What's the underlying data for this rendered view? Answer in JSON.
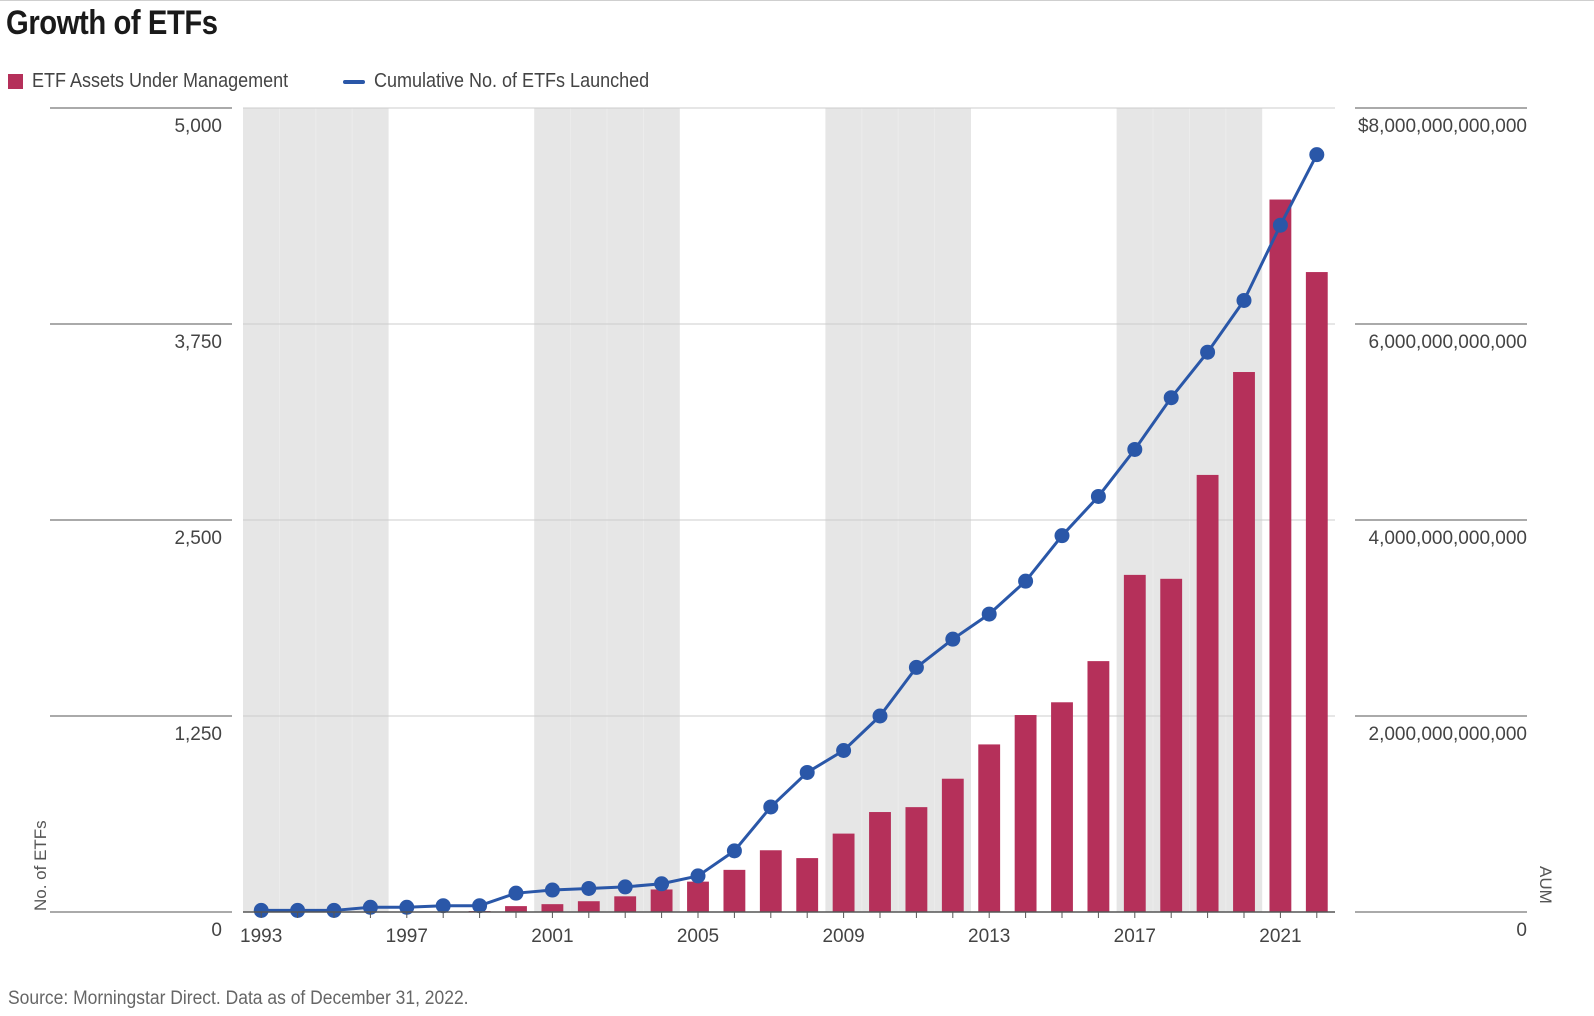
{
  "title": "Growth of ETFs",
  "source": "Source: Morningstar Direct. Data as of December 31, 2022.",
  "legend": {
    "bars": "ETF Assets Under Management",
    "line": "Cumulative No. of ETFs Launched"
  },
  "colors": {
    "bar": "#b5305a",
    "line": "#2a57a8",
    "shade": "#e6e6e6",
    "grid": "#cccccc",
    "axis": "#555555"
  },
  "chart_data": {
    "type": "bar",
    "title": "Growth of ETFs",
    "x": [
      1993,
      1994,
      1995,
      1996,
      1997,
      1998,
      1999,
      2000,
      2001,
      2002,
      2003,
      2004,
      2005,
      2006,
      2007,
      2008,
      2009,
      2010,
      2011,
      2012,
      2013,
      2014,
      2015,
      2016,
      2017,
      2018,
      2019,
      2020,
      2021,
      2022
    ],
    "x_tick_labels": [
      "1993",
      "1997",
      "2001",
      "2005",
      "2009",
      "2013",
      "2017",
      "2021"
    ],
    "left_axis": {
      "label": "No. of ETFs",
      "ylim": [
        0,
        5000
      ],
      "ticks": [
        "0",
        "1,250",
        "2,500",
        "3,750",
        "5,000"
      ]
    },
    "right_axis": {
      "label": "AUM",
      "ylim": [
        0,
        8000000000000
      ],
      "ticks": [
        "0",
        "2,000,000,000,000",
        "4,000,000,000,000",
        "6,000,000,000,000",
        "$8,000,000,000,000"
      ]
    },
    "shaded_ranges": [
      [
        1993,
        1996
      ],
      [
        2001,
        2004
      ],
      [
        2009,
        2012
      ],
      [
        2017,
        2020
      ]
    ],
    "grid": true,
    "legend_position": "top-left",
    "series": [
      {
        "name": "ETF Assets Under Management",
        "kind": "bar",
        "axis": "right",
        "values": [
          0,
          0,
          0,
          0,
          0,
          0,
          10000000000,
          60000000000,
          80000000000,
          110000000000,
          160000000000,
          230000000000,
          310000000000,
          430000000000,
          630000000000,
          550000000000,
          800000000000,
          1020000000000,
          1070000000000,
          1360000000000,
          1710000000000,
          2010000000000,
          2140000000000,
          2560000000000,
          3440000000000,
          3400000000000,
          4460000000000,
          5510000000000,
          7270000000000,
          6530000000000
        ]
      },
      {
        "name": "Cumulative No. of ETFs Launched",
        "kind": "line",
        "axis": "left",
        "values": [
          10,
          10,
          10,
          30,
          30,
          40,
          40,
          120,
          140,
          150,
          160,
          180,
          230,
          390,
          670,
          890,
          1030,
          1250,
          1560,
          1740,
          1900,
          2110,
          2400,
          2650,
          2950,
          3280,
          3570,
          3900,
          4380,
          4830
        ]
      }
    ]
  }
}
